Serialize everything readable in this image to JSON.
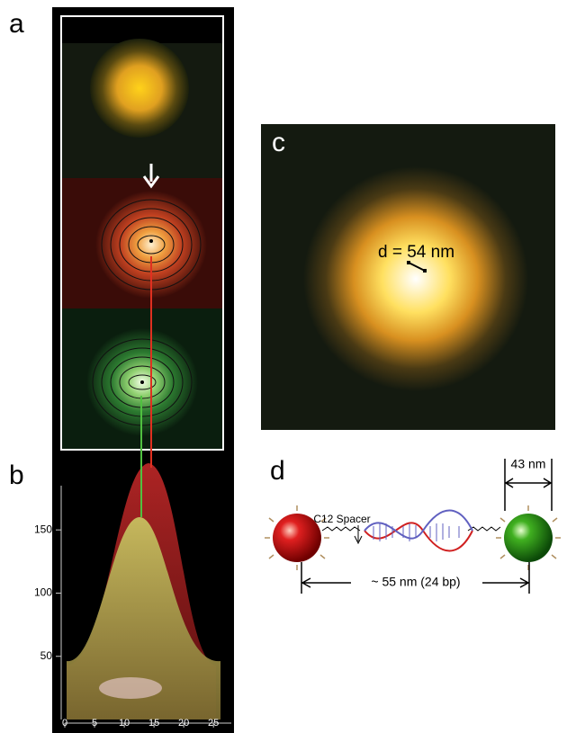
{
  "panels": {
    "a": {
      "label": "a"
    },
    "b": {
      "label": "b",
      "xlim": [
        0,
        28
      ],
      "ylim": [
        0,
        185
      ],
      "xticks": [
        0,
        5,
        10,
        15,
        20,
        25
      ],
      "yticks": [
        50,
        100,
        150
      ]
    },
    "c": {
      "label": "c",
      "annotation": "d = 54 nm"
    },
    "d": {
      "label": "d",
      "spacer": "C12 Spacer",
      "particle_size": "43 nm",
      "distance": "~ 55 nm (24 bp)"
    }
  }
}
